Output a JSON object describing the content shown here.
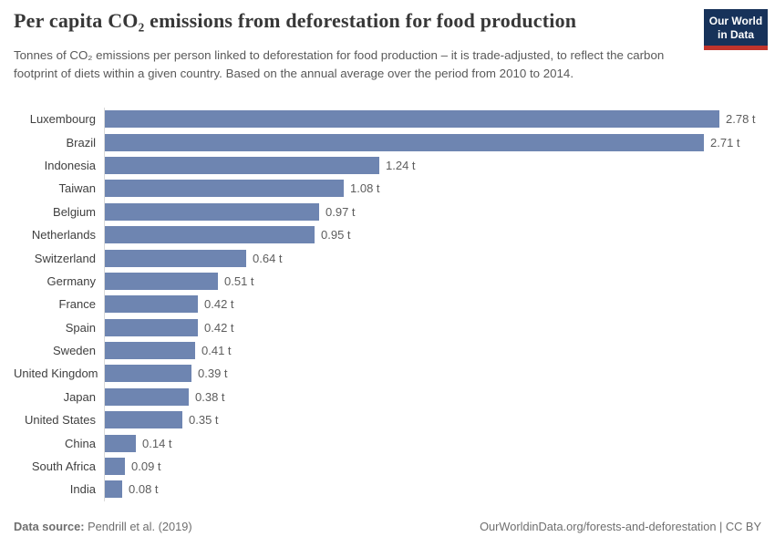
{
  "header": {
    "logo": {
      "line1": "Our World",
      "line2": "in Data"
    }
  },
  "chart_data": {
    "type": "bar",
    "orientation": "horizontal",
    "title": "Per capita CO₂ emissions from deforestation for food production",
    "subtitle": "Tonnes of CO₂ emissions per person linked to deforestation for food production – it is trade-adjusted, to reflect the carbon footprint of diets within a given country. Based on the annual average over the period from 2010 to 2014.",
    "categories": [
      "Luxembourg",
      "Brazil",
      "Indonesia",
      "Taiwan",
      "Belgium",
      "Netherlands",
      "Switzerland",
      "Germany",
      "France",
      "Spain",
      "Sweden",
      "United Kingdom",
      "Japan",
      "United States",
      "China",
      "South Africa",
      "India"
    ],
    "values": [
      2.78,
      2.71,
      1.24,
      1.08,
      0.97,
      0.95,
      0.64,
      0.51,
      0.42,
      0.42,
      0.41,
      0.39,
      0.38,
      0.35,
      0.14,
      0.09,
      0.08
    ],
    "value_suffix": " t",
    "value_decimals": 2,
    "xlim": [
      0,
      2.78
    ],
    "bar_color": "#6e85b1",
    "axis_line_color": "#dadada",
    "grid": false,
    "value_labels": true,
    "legend": "none"
  },
  "footer": {
    "datasource_label": "Data source:",
    "datasource_value": " Pendrill et al. (2019)",
    "url": "OurWorldinData.org/forests-and-deforestation",
    "separator": " | ",
    "license": "CC BY"
  }
}
